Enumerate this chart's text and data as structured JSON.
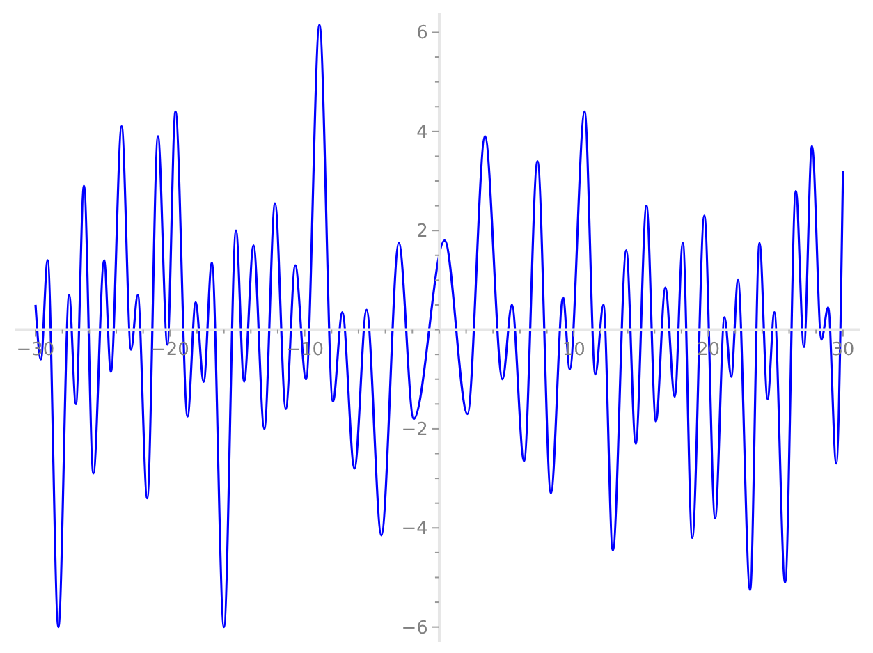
{
  "chart_data": {
    "type": "line",
    "marker": "none",
    "line_style": "solid",
    "grid": false,
    "x": [
      -30,
      -29.6,
      -29.1,
      -28.3,
      -27.5,
      -27.0,
      -26.4,
      -25.7,
      -24.9,
      -24.4,
      -23.6,
      -22.9,
      -22.4,
      -21.7,
      -20.9,
      -20.2,
      -19.6,
      -18.7,
      -18.1,
      -17.5,
      -16.9,
      -16.0,
      -15.1,
      -14.5,
      -13.8,
      -13.0,
      -12.2,
      -11.4,
      -10.7,
      -9.9,
      -8.9,
      -7.9,
      -7.2,
      -6.3,
      -5.4,
      -4.3,
      -3.0,
      -1.9,
      0.4,
      2.1,
      3.4,
      4.7,
      5.4,
      6.3,
      7.3,
      8.3,
      9.2,
      9.7,
      10.8,
      11.6,
      12.2,
      12.9,
      13.9,
      14.6,
      15.4,
      16.1,
      16.8,
      17.5,
      18.1,
      18.8,
      19.7,
      20.5,
      21.2,
      21.7,
      22.2,
      23.1,
      23.8,
      24.4,
      24.9,
      25.7,
      26.5,
      27.1,
      27.7,
      28.4,
      28.9,
      29.5,
      30
    ],
    "series": [
      {
        "color": "#0000ff",
        "values": [
          0.5,
          -0.6,
          1.4,
          -6.0,
          0.7,
          -1.5,
          2.9,
          -2.9,
          1.4,
          -0.85,
          4.1,
          -0.4,
          0.7,
          -3.4,
          3.9,
          -0.3,
          4.4,
          -1.75,
          0.55,
          -1.05,
          1.35,
          -6.0,
          2.0,
          -1.05,
          1.7,
          -2.0,
          2.55,
          -1.6,
          1.3,
          -1.0,
          6.15,
          -1.45,
          0.35,
          -2.8,
          0.4,
          -4.15,
          1.75,
          -1.8,
          1.8,
          -1.7,
          3.9,
          -1.0,
          0.5,
          -2.65,
          3.4,
          -3.3,
          0.65,
          -0.8,
          4.4,
          -0.9,
          0.5,
          -4.45,
          1.6,
          -2.3,
          2.5,
          -1.85,
          0.85,
          -1.35,
          1.75,
          -4.2,
          2.3,
          -3.8,
          0.25,
          -0.95,
          1.0,
          -5.25,
          1.75,
          -1.4,
          0.35,
          -5.1,
          2.8,
          -0.35,
          3.7,
          -0.2,
          0.45,
          -2.7,
          3.2
        ]
      }
    ],
    "xlim": [
      -31.5,
      31.3
    ],
    "ylim": [
      -6.3,
      6.4
    ],
    "xticks": [
      -30,
      {
        "value": -28,
        "label": null
      },
      {
        "value": -26,
        "label": null
      },
      {
        "value": -24,
        "label": null
      },
      {
        "value": -22,
        "label": null
      },
      -20,
      {
        "value": -18,
        "label": null
      },
      {
        "value": -16,
        "label": null
      },
      {
        "value": -14,
        "label": null
      },
      {
        "value": -12,
        "label": null
      },
      -10,
      {
        "value": -8,
        "label": null
      },
      {
        "value": -6,
        "label": null
      },
      {
        "value": -4,
        "label": null
      },
      {
        "value": -2,
        "label": null
      },
      {
        "value": 0,
        "label": null
      },
      {
        "value": 2,
        "label": null
      },
      {
        "value": 4,
        "label": null
      },
      {
        "value": 6,
        "label": null
      },
      {
        "value": 8,
        "label": null
      },
      10,
      {
        "value": 12,
        "label": null
      },
      {
        "value": 14,
        "label": null
      },
      {
        "value": 16,
        "label": null
      },
      {
        "value": 18,
        "label": null
      },
      20,
      {
        "value": 22,
        "label": null
      },
      {
        "value": 24,
        "label": null
      },
      {
        "value": 26,
        "label": null
      },
      {
        "value": 28,
        "label": null
      },
      30
    ],
    "yticks": [
      -6,
      {
        "value": -5.5,
        "label": null
      },
      {
        "value": -5,
        "label": null
      },
      {
        "value": -4.5,
        "label": null
      },
      -4,
      {
        "value": -3.5,
        "label": null
      },
      {
        "value": -3,
        "label": null
      },
      {
        "value": -2.5,
        "label": null
      },
      -2,
      {
        "value": -1.5,
        "label": null
      },
      {
        "value": -1,
        "label": null
      },
      {
        "value": -0.5,
        "label": null
      },
      {
        "value": 0,
        "label": null
      },
      {
        "value": 0.5,
        "label": null
      },
      {
        "value": 1,
        "label": null
      },
      {
        "value": 1.5,
        "label": null
      },
      2,
      {
        "value": 2.5,
        "label": null
      },
      {
        "value": 3,
        "label": null
      },
      {
        "value": 3.5,
        "label": null
      },
      4,
      {
        "value": 4.5,
        "label": null
      },
      {
        "value": 5,
        "label": null
      },
      {
        "value": 5.5,
        "label": null
      },
      6
    ]
  }
}
